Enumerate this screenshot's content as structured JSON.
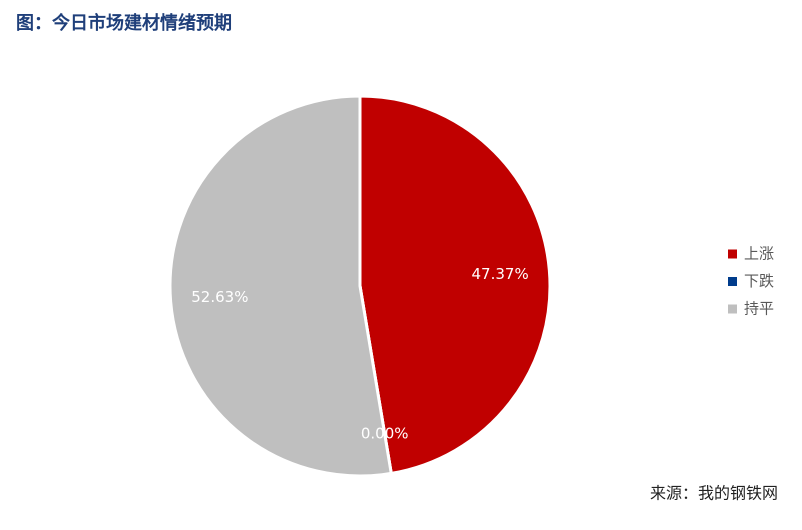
{
  "chart_data": {
    "type": "pie",
    "title": "图：今日市场建材情绪预期",
    "source": "来源：我的钢铁网",
    "categories": [
      "上涨",
      "下跌",
      "持平"
    ],
    "values": [
      47.37,
      0.0,
      52.63
    ],
    "value_labels": [
      "47.37%",
      "0.00%",
      "52.63%"
    ],
    "colors": [
      "#c00000",
      "#003c8c",
      "#bfbfbf"
    ],
    "legend": "right"
  }
}
